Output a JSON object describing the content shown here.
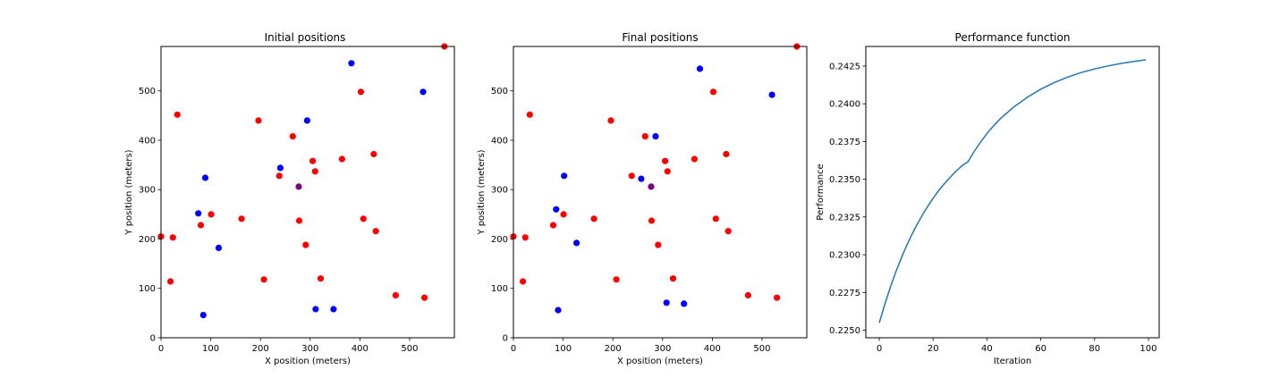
{
  "colors": {
    "red": "#ff0000",
    "blue": "#0000ff",
    "purple": "#800080",
    "line": "#1f77b4"
  },
  "chart_data": [
    {
      "type": "scatter",
      "title": "Initial positions",
      "xlabel": "X position (meters)",
      "ylabel": "Y position (meters)",
      "xlim": [
        0,
        590
      ],
      "ylim": [
        0,
        590
      ],
      "xticks": [
        0,
        100,
        200,
        300,
        400,
        500
      ],
      "yticks": [
        0,
        100,
        200,
        300,
        400,
        500
      ],
      "grid": false,
      "series": [
        {
          "color": "#ff0000",
          "points": [
            [
              570,
              590
            ],
            [
              33,
              452
            ],
            [
              196,
              440
            ],
            [
              402,
              498
            ],
            [
              265,
              408
            ],
            [
              305,
              358
            ],
            [
              364,
              362
            ],
            [
              428,
              372
            ],
            [
              238,
              328
            ],
            [
              310,
              337
            ],
            [
              101,
              250
            ],
            [
              162,
              241
            ],
            [
              278,
              237
            ],
            [
              80,
              228
            ],
            [
              407,
              241
            ],
            [
              432,
              216
            ],
            [
              0,
              205
            ],
            [
              24,
              203
            ],
            [
              291,
              188
            ],
            [
              19,
              114
            ],
            [
              207,
              118
            ],
            [
              321,
              120
            ],
            [
              472,
              86
            ],
            [
              530,
              81
            ]
          ]
        },
        {
          "color": "#0000ff",
          "points": [
            [
              383,
              556
            ],
            [
              527,
              498
            ],
            [
              294,
              440
            ],
            [
              240,
              344
            ],
            [
              89,
              324
            ],
            [
              75,
              252
            ],
            [
              116,
              182
            ],
            [
              85,
              46
            ],
            [
              311,
              58
            ],
            [
              347,
              58
            ]
          ]
        },
        {
          "color": "#800080",
          "points": [
            [
              277,
              306
            ]
          ]
        }
      ]
    },
    {
      "type": "scatter",
      "title": "Final positions",
      "xlabel": "X position (meters)",
      "ylabel": "Y position (meters)",
      "xlim": [
        0,
        590
      ],
      "ylim": [
        0,
        590
      ],
      "xticks": [
        0,
        100,
        200,
        300,
        400,
        500
      ],
      "yticks": [
        0,
        100,
        200,
        300,
        400,
        500
      ],
      "grid": false,
      "series": [
        {
          "color": "#ff0000",
          "points": [
            [
              570,
              590
            ],
            [
              33,
              452
            ],
            [
              196,
              440
            ],
            [
              402,
              498
            ],
            [
              265,
              408
            ],
            [
              305,
              358
            ],
            [
              364,
              362
            ],
            [
              428,
              372
            ],
            [
              238,
              328
            ],
            [
              310,
              337
            ],
            [
              101,
              250
            ],
            [
              162,
              241
            ],
            [
              278,
              237
            ],
            [
              80,
              228
            ],
            [
              407,
              241
            ],
            [
              432,
              216
            ],
            [
              0,
              205
            ],
            [
              24,
              203
            ],
            [
              291,
              188
            ],
            [
              19,
              114
            ],
            [
              207,
              118
            ],
            [
              321,
              120
            ],
            [
              472,
              86
            ],
            [
              530,
              81
            ]
          ]
        },
        {
          "color": "#0000ff",
          "points": [
            [
              375,
              545
            ],
            [
              520,
              492
            ],
            [
              286,
              408
            ],
            [
              257,
              322
            ],
            [
              102,
              328
            ],
            [
              86,
              260
            ],
            [
              127,
              192
            ],
            [
              90,
              56
            ],
            [
              308,
              71
            ],
            [
              343,
              69
            ]
          ]
        },
        {
          "color": "#800080",
          "points": [
            [
              277,
              306
            ]
          ]
        }
      ]
    },
    {
      "type": "line",
      "title": "Performance function",
      "xlabel": "Iteration",
      "ylabel": "Performance",
      "xlim": [
        -5,
        104
      ],
      "ylim": [
        0.2245,
        0.2438
      ],
      "xticks": [
        0,
        20,
        40,
        60,
        80,
        100
      ],
      "yticks": [
        0.225,
        0.2275,
        0.23,
        0.2325,
        0.235,
        0.2375,
        0.24,
        0.2425
      ],
      "ytick_labels": [
        "0.2250",
        "0.2275",
        "0.2300",
        "0.2325",
        "0.2350",
        "0.2375",
        "0.2400",
        "0.2425"
      ],
      "grid": false,
      "series": [
        {
          "color": "#1f77b4",
          "x": [
            0,
            2,
            4,
            6,
            8,
            10,
            12,
            14,
            16,
            18,
            20,
            22,
            24,
            26,
            28,
            30,
            31,
            33,
            35,
            38,
            41,
            45,
            50,
            55,
            60,
            65,
            70,
            75,
            80,
            85,
            90,
            95,
            99
          ],
          "y": [
            0.22548,
            0.22669,
            0.22779,
            0.22879,
            0.2297,
            0.23054,
            0.2313,
            0.232,
            0.23263,
            0.23321,
            0.23374,
            0.23423,
            0.23467,
            0.23507,
            0.23544,
            0.23578,
            0.23593,
            0.23616,
            0.23678,
            0.23756,
            0.23825,
            0.23902,
            0.23979,
            0.24043,
            0.24097,
            0.24141,
            0.24177,
            0.24207,
            0.24231,
            0.24251,
            0.24268,
            0.24282,
            0.24292
          ]
        }
      ]
    }
  ]
}
